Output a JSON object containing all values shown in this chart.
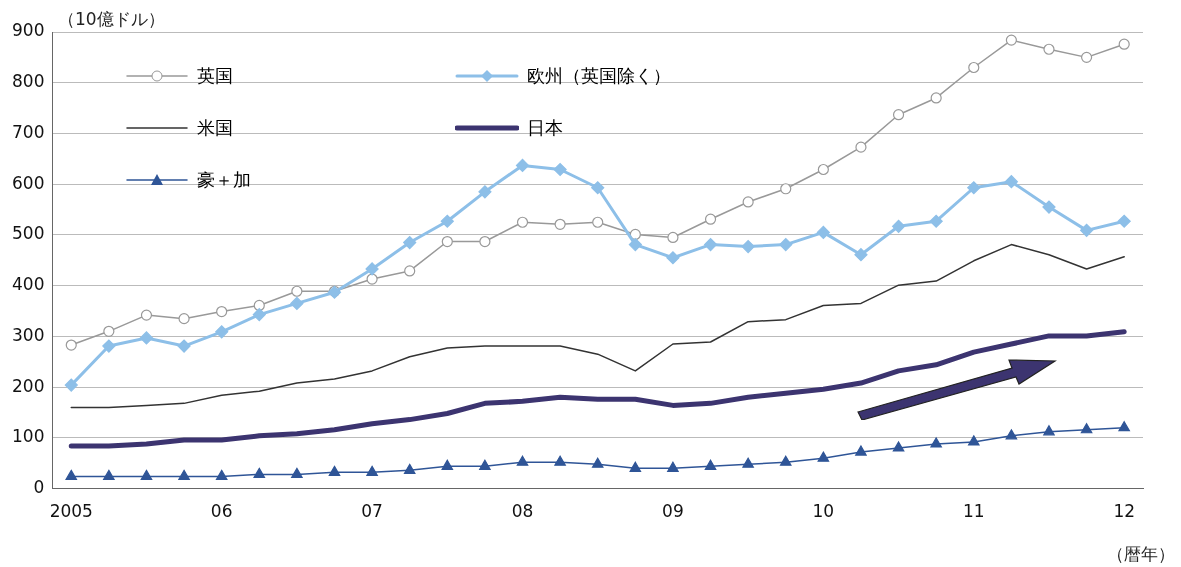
{
  "chart_data": {
    "type": "line",
    "ylabel": "（10億ドル）",
    "xlabel": "（暦年）",
    "categories": [
      "2005",
      null,
      null,
      null,
      "06",
      null,
      null,
      null,
      "07",
      null,
      null,
      null,
      "08",
      null,
      null,
      null,
      "09",
      null,
      null,
      null,
      "10",
      null,
      null,
      null,
      "11",
      null,
      null,
      null,
      "12"
    ],
    "ylim": [
      0,
      900
    ],
    "yticks": [
      0,
      100,
      200,
      300,
      400,
      500,
      600,
      700,
      800,
      900
    ],
    "grid": "y",
    "legend": "top left",
    "series": [
      {
        "name": "英国",
        "color": "#999999",
        "marker": "circle",
        "values": [
          283,
          310,
          342,
          335,
          349,
          361,
          389,
          389,
          413,
          429,
          487,
          487,
          525,
          521,
          525,
          501,
          495,
          531,
          565,
          591,
          629,
          673,
          737,
          770,
          830,
          884,
          866,
          850,
          876
        ]
      },
      {
        "name": "欧州（英国除く）",
        "color": "#8dbfe8",
        "marker": "diamond",
        "values": [
          204,
          281,
          297,
          281,
          309,
          343,
          365,
          387,
          433,
          485,
          527,
          585,
          637,
          629,
          593,
          481,
          455,
          481,
          477,
          481,
          505,
          461,
          517,
          527,
          593,
          605,
          555,
          509,
          527
        ]
      },
      {
        "name": "米国",
        "color": "#333333",
        "marker": "none",
        "values": [
          160,
          160,
          164,
          168,
          184,
          192,
          208,
          216,
          232,
          260,
          277,
          281,
          281,
          281,
          265,
          232,
          285,
          289,
          329,
          333,
          361,
          365,
          401,
          409,
          449,
          481,
          461,
          433,
          457
        ]
      },
      {
        "name": "日本",
        "color": "#3c3470",
        "marker": "none",
        "values": [
          84,
          84,
          88,
          96,
          96,
          104,
          108,
          116,
          128,
          136,
          148,
          168,
          172,
          180,
          176,
          176,
          164,
          168,
          180,
          188,
          196,
          208,
          232,
          244,
          269,
          285,
          301,
          301,
          309
        ]
      },
      {
        "name": "豪＋加",
        "color": "#2f5597",
        "marker": "triangle",
        "values": [
          24,
          24,
          24,
          24,
          24,
          28,
          28,
          32,
          32,
          36,
          44,
          44,
          52,
          52,
          48,
          40,
          40,
          44,
          48,
          52,
          60,
          72,
          80,
          88,
          92,
          104,
          112,
          116,
          120
        ]
      }
    ]
  }
}
